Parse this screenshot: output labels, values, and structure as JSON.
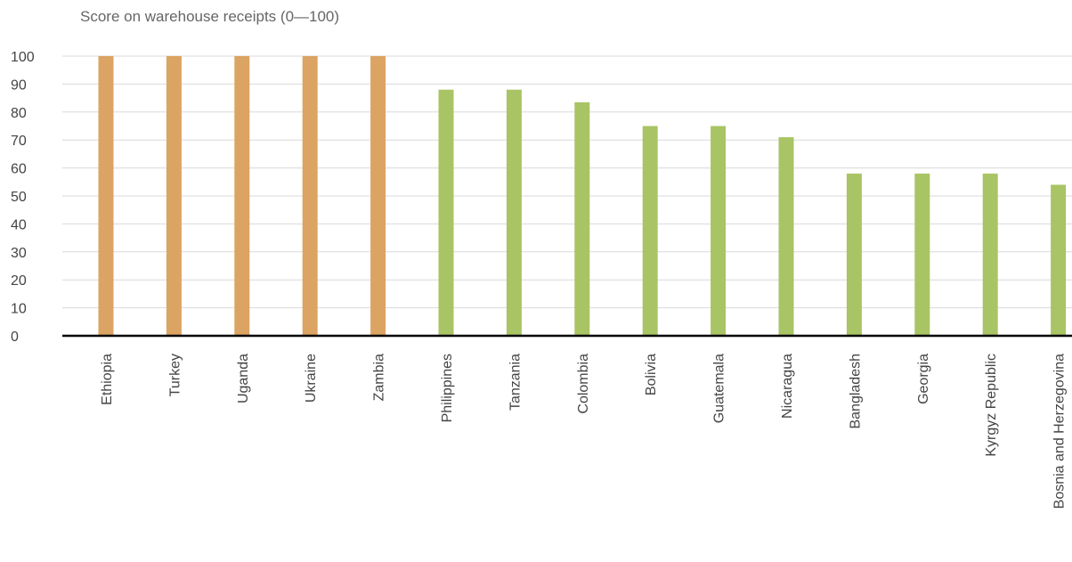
{
  "chart_data": {
    "type": "bar",
    "title": "Score on warehouse receipts (0—100)",
    "xlabel": "",
    "ylabel": "",
    "ylim": [
      0,
      100
    ],
    "yticks": [
      0,
      10,
      20,
      30,
      40,
      50,
      60,
      70,
      80,
      90,
      100
    ],
    "grid": true,
    "legend": "none",
    "categories": [
      "Ethiopia",
      "Turkey",
      "Uganda",
      "Ukraine",
      "Zambia",
      "Philippines",
      "Tanzania",
      "Colombia",
      "Bolivia",
      "Guatemala",
      "Nicaragua",
      "Bangladesh",
      "Georgia",
      "Kyrgyz Republic",
      "Bosnia and Herzegovina"
    ],
    "values": [
      100,
      100,
      100,
      100,
      100,
      88,
      88,
      83.5,
      75,
      75,
      71,
      58,
      58,
      58,
      54
    ],
    "bar_colors": [
      "#dba463",
      "#dba463",
      "#dba463",
      "#dba463",
      "#dba463",
      "#a9c464",
      "#a9c464",
      "#a9c464",
      "#a9c464",
      "#a9c464",
      "#a9c464",
      "#a9c464",
      "#a9c464",
      "#a9c464",
      "#a9c464"
    ],
    "colors": {
      "grid": "#d9d9d9",
      "axis": "#000000",
      "text": "#444444",
      "title": "#666666"
    }
  }
}
